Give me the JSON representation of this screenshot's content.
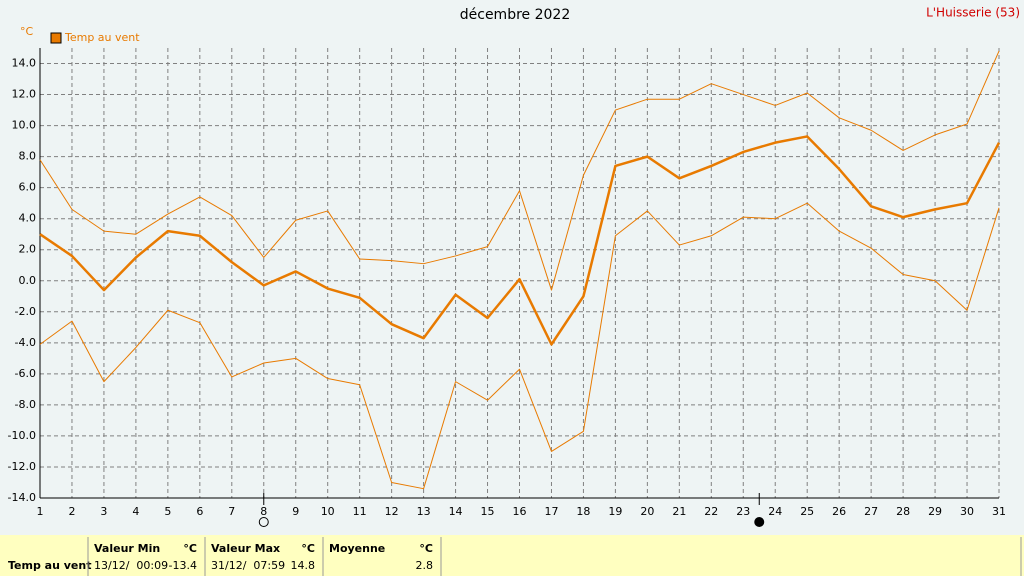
{
  "chart_data": {
    "type": "line",
    "title": "décembre 2022",
    "station": "L'Huisserie (53)",
    "y_unit": "°C",
    "x": [
      1,
      2,
      3,
      4,
      5,
      6,
      7,
      8,
      9,
      10,
      11,
      12,
      13,
      14,
      15,
      16,
      17,
      18,
      19,
      20,
      21,
      22,
      23,
      24,
      25,
      26,
      27,
      28,
      29,
      30,
      31
    ],
    "series": [
      {
        "color": "#e87a00",
        "width": 1,
        "values": [
          7.8,
          4.6,
          3.2,
          3.0,
          4.3,
          5.4,
          4.2,
          1.5,
          3.9,
          4.5,
          1.4,
          1.3,
          1.1,
          1.6,
          2.2,
          5.8,
          -0.6,
          6.8,
          11.0,
          11.7,
          11.7,
          12.7,
          12.0,
          11.3,
          12.1,
          10.5,
          9.7,
          8.4,
          9.4,
          10.1,
          14.8
        ]
      },
      {
        "name": "Temp au vent",
        "color": "#e87a00",
        "width": 2.5,
        "values": [
          3.0,
          1.6,
          -0.6,
          1.5,
          3.2,
          2.9,
          1.2,
          -0.3,
          0.6,
          -0.5,
          -1.1,
          -2.8,
          -3.7,
          -0.9,
          -2.4,
          0.1,
          -4.1,
          -1.0,
          7.4,
          8.0,
          6.6,
          7.4,
          8.3,
          8.9,
          9.3,
          7.2,
          4.8,
          4.1,
          4.6,
          5.0,
          8.9
        ]
      },
      {
        "color": "#e87a00",
        "width": 1,
        "values": [
          -4.1,
          -2.6,
          -6.5,
          -4.3,
          -1.9,
          -2.7,
          -6.2,
          -5.3,
          -5.0,
          -6.3,
          -6.7,
          -13.0,
          -13.4,
          -6.5,
          -7.7,
          -5.7,
          -11.0,
          -9.7,
          2.9,
          4.5,
          2.3,
          2.9,
          4.1,
          4.0,
          5.0,
          3.2,
          2.1,
          0.4,
          0.0,
          -1.9,
          4.7
        ]
      }
    ],
    "moon_phases_x": [
      8,
      23.5
    ],
    "xlim": [
      1,
      31
    ],
    "xticks": [
      1,
      2,
      3,
      4,
      5,
      6,
      7,
      8,
      9,
      10,
      11,
      12,
      13,
      14,
      15,
      16,
      17,
      18,
      19,
      20,
      21,
      22,
      23,
      24,
      25,
      26,
      27,
      28,
      29,
      30,
      31
    ],
    "ylim": [
      -14,
      15
    ],
    "yticks": [
      {
        "value": -14,
        "label": "-14.0"
      },
      {
        "value": -12,
        "label": "-12.0"
      },
      {
        "value": -10,
        "label": "-10.0"
      },
      {
        "value": -8,
        "label": "-8.0"
      },
      {
        "value": -6,
        "label": "-6.0"
      },
      {
        "value": -4,
        "label": "-4.0"
      },
      {
        "value": -2,
        "label": "-2.0"
      },
      {
        "value": 0,
        "label": "0.0"
      },
      {
        "value": 2,
        "label": "2.0"
      },
      {
        "value": 4,
        "label": "4.0"
      },
      {
        "value": 6,
        "label": "6.0"
      },
      {
        "value": 8,
        "label": "8.0"
      },
      {
        "value": 10,
        "label": "10.0"
      },
      {
        "value": 12,
        "label": "12.0"
      },
      {
        "value": 14,
        "label": "14.0"
      }
    ],
    "grid": true,
    "legend": "top-left"
  },
  "summary": {
    "row_label": "Temp au vent",
    "columns": [
      {
        "header": "Valeur Min",
        "unit": "°C",
        "date": "13/12/  00:09",
        "value": -13.4
      },
      {
        "header": "Valeur Max",
        "unit": "°C",
        "date": "31/12/  07:59",
        "value": 14.8
      },
      {
        "header": "Moyenne",
        "unit": "°C",
        "value": 2.8
      }
    ]
  }
}
